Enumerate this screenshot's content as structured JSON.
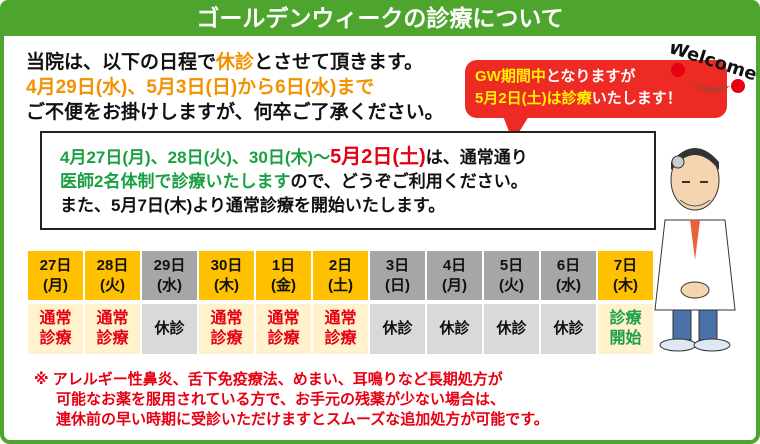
{
  "header": {
    "title": "ゴールデンウィークの診療について"
  },
  "intro": {
    "line1_a": "当院は、以下の日程で",
    "line1_hl": "休診",
    "line1_b": "とさせて頂きます。",
    "line2": "4月29日(水)、5月3日(日)から6日(水)まで",
    "line3": "ご不便をお掛けしますが、何卒ご了承ください。"
  },
  "bubble": {
    "l1_a": "GW期間中",
    "l1_b": "となりますが",
    "l2_a": "5月2日(土)は診療",
    "l2_b": "いたします！"
  },
  "welcome": "Welcome",
  "box": {
    "l1_a": "4月27日(月)、28日(火)、30日(木)～",
    "l1_b": "5月2日(土)",
    "l1_c": "は、通常通り",
    "l2_a": "医師2名体制で診療いたします",
    "l2_b": "ので、どうぞご利用ください。",
    "l3": "また、5月7日(木)より通常診療を開始いたします。"
  },
  "schedule": [
    {
      "date": "27日",
      "dow": "(月)",
      "status": "通常診療",
      "type": "open"
    },
    {
      "date": "28日",
      "dow": "(火)",
      "status": "通常診療",
      "type": "open"
    },
    {
      "date": "29日",
      "dow": "(水)",
      "status": "休診",
      "type": "closed"
    },
    {
      "date": "30日",
      "dow": "(木)",
      "status": "通常診療",
      "type": "open"
    },
    {
      "date": "1日",
      "dow": "(金)",
      "status": "通常診療",
      "type": "open"
    },
    {
      "date": "2日",
      "dow": "(土)",
      "status": "通常診療",
      "type": "open"
    },
    {
      "date": "3日",
      "dow": "(日)",
      "status": "休診",
      "type": "closed"
    },
    {
      "date": "4日",
      "dow": "(月)",
      "status": "休診",
      "type": "closed"
    },
    {
      "date": "5日",
      "dow": "(火)",
      "status": "休診",
      "type": "closed"
    },
    {
      "date": "6日",
      "dow": "(水)",
      "status": "休診",
      "type": "closed"
    },
    {
      "date": "7日",
      "dow": "(木)",
      "status": "診療開始",
      "type": "resume"
    }
  ],
  "note": {
    "l1": "※ アレルギー性鼻炎、舌下免疫療法、めまい、耳鳴りなど長期処方が",
    "l2": "可能なお薬を服用されている方で、お手元の残薬が少ない場合は、",
    "l3": "連休前の早い時期に受診いただけますとスムーズな追加処方が可能です。"
  },
  "colors": {
    "green": "#4ea52e",
    "orange": "#f39200",
    "red": "#e60012",
    "open_header": "#ffc000",
    "closed_header": "#a6a6a6"
  }
}
